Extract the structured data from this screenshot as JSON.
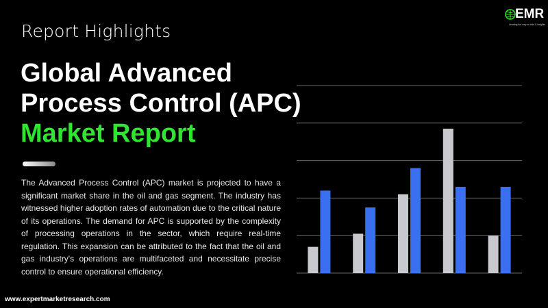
{
  "header": {
    "kicker": "Report Highlights"
  },
  "title": {
    "line1": "Global Advanced",
    "line2": "Process Control (APC)",
    "line3": "Market Report"
  },
  "description": "The Advanced Process Control (APC) market is projected to have a significant market share in the oil and gas segment. The industry has witnessed higher adoption rates of automation due to the critical nature of its operations. The demand for APC is supported by the complexity of processing operations in the sector, which require real-time regulation. This expansion can be attributed to the fact that the oil and gas industry's operations are multifaceted and necessitate precise control to ensure operational efficiency.",
  "footer": {
    "url": "www.expertmarketresearch.com"
  },
  "logo": {
    "text": "EMR",
    "tagline": "Leading the way in data & insights"
  },
  "colors": {
    "background": "#000000",
    "accent_green": "#2fe52f",
    "bar_gray": "#c8c9ce",
    "bar_blue": "#3a6ff0",
    "gridline": "#6a6a6a"
  },
  "chart_data": {
    "type": "bar",
    "categories": [
      "",
      "",
      "",
      "",
      ""
    ],
    "series": [
      {
        "values": [
          0.7,
          1.05,
          2.1,
          3.85,
          1.0
        ]
      },
      {
        "values": [
          2.2,
          1.75,
          2.8,
          2.3,
          2.3
        ]
      }
    ],
    "ylim": [
      0,
      5
    ],
    "grid": true,
    "title": "",
    "xlabel": "",
    "ylabel": ""
  }
}
